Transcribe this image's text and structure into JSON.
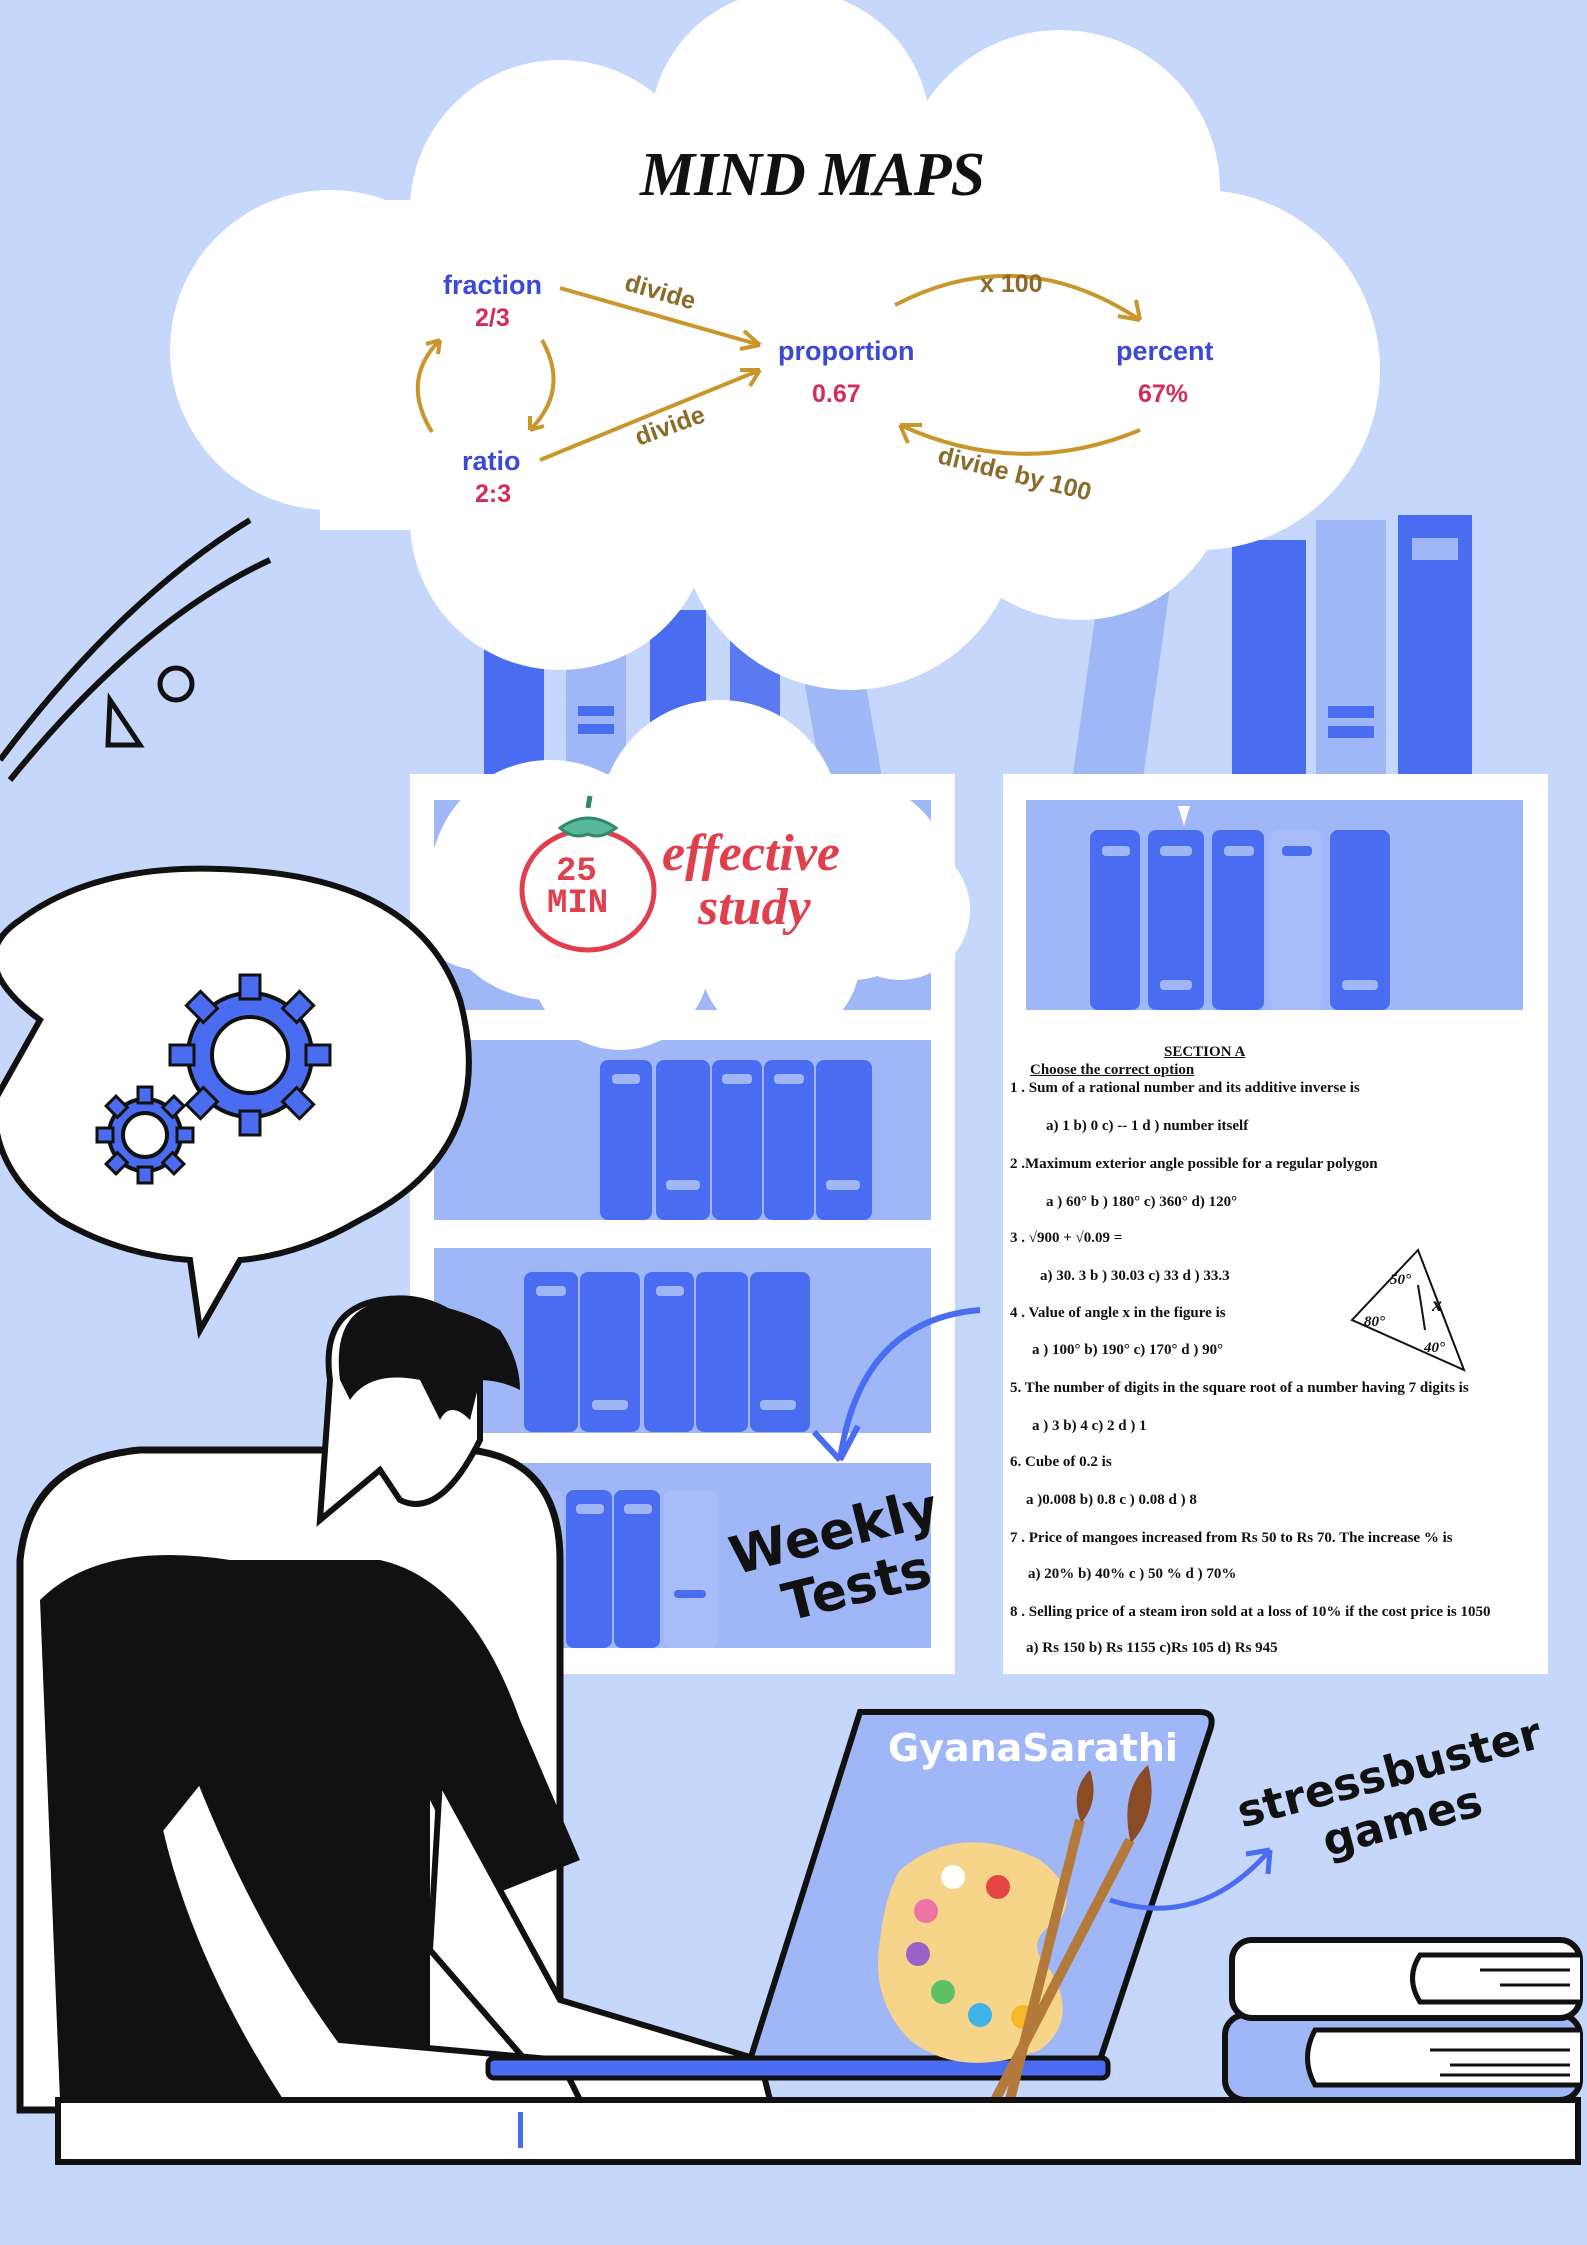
{
  "mind_map": {
    "title": "MIND MAPS",
    "fraction_label": "fraction",
    "fraction_value": "2/3",
    "ratio_label": "ratio",
    "ratio_value": "2:3",
    "proportion_label": "proportion",
    "proportion_value": "0.67",
    "percent_label": "percent",
    "percent_value": "67%",
    "edge_fraction_to_proportion": "divide",
    "edge_ratio_to_proportion": "divide",
    "edge_proportion_to_percent": "x 100",
    "edge_percent_to_proportion": "divide by 100"
  },
  "pomodoro": {
    "minutes": "25",
    "unit": "MIN",
    "line1": "effective",
    "line2": "study"
  },
  "test_paper": {
    "section": "SECTION A",
    "instruction": "Choose the correct option",
    "lines": [
      "1 . Sum of a rational number and its additive inverse is",
      "a) 1          b)  0       c)  -- 1       d ) number itself",
      "2 .Maximum exterior angle possible for a regular polygon",
      "a ) 60°       b )  180°     c) 360°         d)  120°",
      "3 .  √900  +  √0.09  =",
      "a) 30. 3         b ) 30.03    c)  33          d ) 33.3",
      "4 . Value of angle x in the figure is",
      "a ) 100°       b) 190°        c) 170°       d ) 90°",
      "5. The number of digits in the square root of a number having 7 digits is",
      "a ) 3            b) 4             c)  2             d ) 1",
      "6. Cube of  0.2 is",
      "a )0.008      b)  0.8         c ) 0.08         d )  8",
      "7 . Price of mangoes increased from Rs 50 to Rs 70. The increase % is",
      "a) 20%       b)   40%      c )   50 %      d ) 70%",
      "8 .  Selling price of a steam iron sold at a loss of 10% if the cost price is 1050",
      "a)  Rs 150   b)  Rs 1155   c)Rs 105     d) Rs 945"
    ],
    "figure_angle_1": "50°",
    "figure_angle_2": "80°",
    "figure_angle_3": "40°",
    "figure_x": "x"
  },
  "weekly_tests": {
    "line1": "Weekly",
    "line2": "Tests"
  },
  "laptop": {
    "brand": "GyanaSarathi"
  },
  "stressbuster": {
    "line1": "stressbuster",
    "line2": "games"
  },
  "colors": {
    "background": "#c5d8fb",
    "accent_blue": "#4a6cf0",
    "light_blue": "#9fb7f7",
    "arrow_gold": "#c8962a",
    "text_red": "#d42c5a"
  }
}
